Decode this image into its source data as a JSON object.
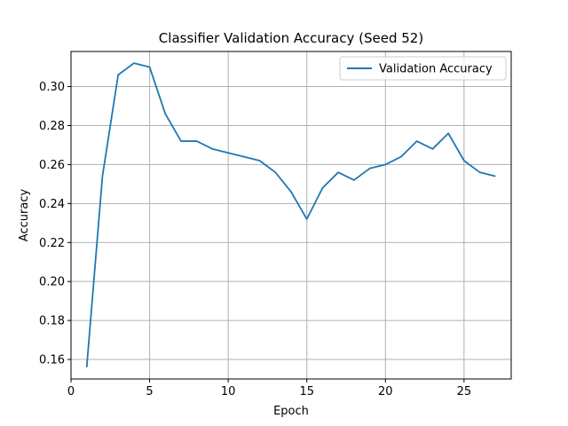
{
  "chart_data": {
    "type": "line",
    "title": "Classifier Validation Accuracy (Seed 52)",
    "xlabel": "Epoch",
    "ylabel": "Accuracy",
    "xlim": [
      0,
      28
    ],
    "ylim": [
      0.15,
      0.318
    ],
    "xticks": [
      0,
      5,
      10,
      15,
      20,
      25
    ],
    "yticks": [
      0.16,
      0.18,
      0.2,
      0.22,
      0.24,
      0.26,
      0.28,
      0.3
    ],
    "ytick_labels": [
      "0.16",
      "0.18",
      "0.20",
      "0.22",
      "0.24",
      "0.26",
      "0.28",
      "0.30"
    ],
    "grid": true,
    "legend_position": "top-right",
    "series": [
      {
        "name": "Validation Accuracy",
        "color": "#1f77b4",
        "x": [
          1,
          2,
          3,
          4,
          5,
          6,
          7,
          8,
          9,
          10,
          11,
          12,
          13,
          14,
          15,
          16,
          17,
          18,
          19,
          20,
          21,
          22,
          23,
          24,
          25,
          26,
          27
        ],
        "y": [
          0.156,
          0.254,
          0.306,
          0.312,
          0.31,
          0.286,
          0.272,
          0.272,
          0.268,
          0.266,
          0.264,
          0.262,
          0.256,
          0.246,
          0.232,
          0.248,
          0.256,
          0.252,
          0.258,
          0.26,
          0.264,
          0.272,
          0.268,
          0.276,
          0.262,
          0.256,
          0.254
        ]
      }
    ]
  }
}
